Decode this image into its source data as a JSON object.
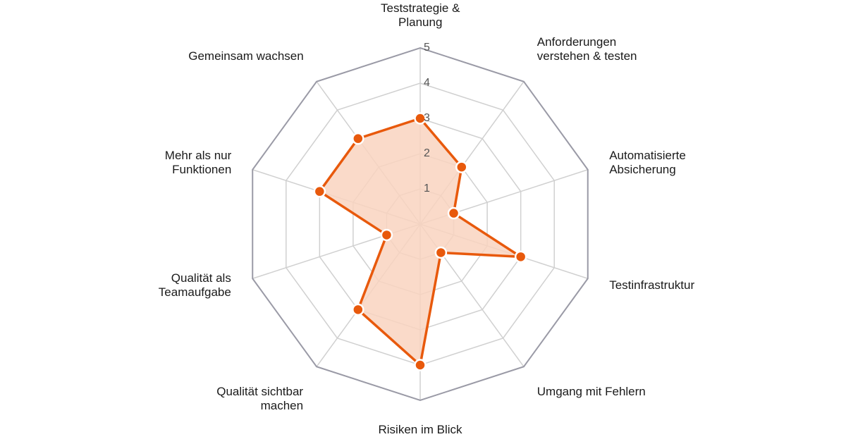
{
  "chart_data": {
    "type": "radar",
    "title": "",
    "scale": {
      "min": 0,
      "max": 5,
      "ticks": [
        "1",
        "2",
        "3",
        "4",
        "5"
      ]
    },
    "grid": true,
    "axes": [
      {
        "label_lines": [
          "Teststrategie &",
          "Planung"
        ],
        "value": 3
      },
      {
        "label_lines": [
          "Anforderungen",
          "verstehen & testen"
        ],
        "value": 2
      },
      {
        "label_lines": [
          "Automatisierte",
          "Absicherung"
        ],
        "value": 1
      },
      {
        "label_lines": [
          "Testinfrastruktur"
        ],
        "value": 3
      },
      {
        "label_lines": [
          "Umgang mit Fehlern"
        ],
        "value": 1
      },
      {
        "label_lines": [
          "Risiken im Blick"
        ],
        "value": 4
      },
      {
        "label_lines": [
          "Qualität sichtbar",
          "machen"
        ],
        "value": 3
      },
      {
        "label_lines": [
          "Qualität als",
          "Teamaufgabe"
        ],
        "value": 1
      },
      {
        "label_lines": [
          "Mehr als nur",
          "Funktionen"
        ],
        "value": 3
      },
      {
        "label_lines": [
          "Gemeinsam wachsen"
        ],
        "value": 3
      }
    ],
    "colors": {
      "series_line": "#E8590C",
      "series_fill": "#F9D3C0",
      "grid": "#D0D0D0",
      "outer_ring": "#9A9AA6"
    }
  }
}
